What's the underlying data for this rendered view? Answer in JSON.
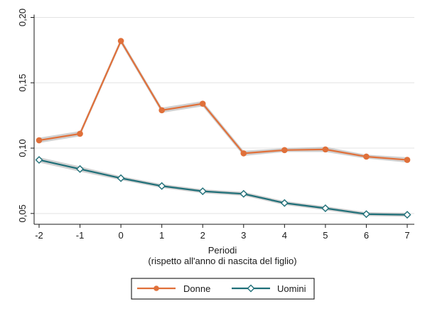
{
  "chart_data": {
    "type": "line",
    "x": [
      -2,
      -1,
      0,
      1,
      2,
      3,
      4,
      5,
      6,
      7
    ],
    "x_tick_labels": [
      "-2",
      "-1",
      "0",
      "1",
      "2",
      "3",
      "4",
      "5",
      "6",
      "7"
    ],
    "xlabel": "Periodi",
    "xlabel_sub": "(rispetto all'anno di nascita del figlio)",
    "ylabel": "",
    "ylim": [
      0.045,
      0.2
    ],
    "y_ticks": [
      0.05,
      0.1,
      0.15,
      0.2
    ],
    "y_tick_labels": [
      "0,05",
      "0,10",
      "0,15",
      "0,20"
    ],
    "grid": "horizontal",
    "legend_position": "bottom",
    "series": [
      {
        "name": "Donne",
        "color": "#e0703a",
        "marker": "circle",
        "values": [
          0.106,
          0.111,
          0.182,
          0.129,
          0.134,
          0.096,
          0.0985,
          0.099,
          0.0935,
          0.091
        ],
        "ci_lower": [
          0.104,
          0.109,
          0.18,
          0.127,
          0.132,
          0.094,
          0.097,
          0.097,
          0.092,
          0.089
        ],
        "ci_upper": [
          0.108,
          0.113,
          0.184,
          0.131,
          0.136,
          0.098,
          0.1,
          0.101,
          0.095,
          0.093
        ]
      },
      {
        "name": "Uomini",
        "color": "#1f6f78",
        "marker": "diamond",
        "values": [
          0.091,
          0.084,
          0.077,
          0.071,
          0.067,
          0.065,
          0.058,
          0.054,
          0.0495,
          0.049
        ],
        "ci_lower": [
          0.089,
          0.082,
          0.0755,
          0.0695,
          0.0655,
          0.0635,
          0.0565,
          0.0525,
          0.048,
          0.0475
        ],
        "ci_upper": [
          0.093,
          0.086,
          0.0785,
          0.0725,
          0.0685,
          0.0665,
          0.0595,
          0.0555,
          0.051,
          0.0505
        ]
      }
    ]
  }
}
